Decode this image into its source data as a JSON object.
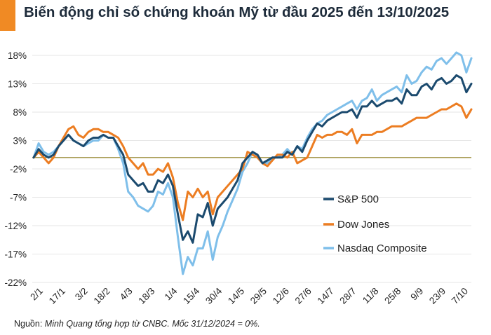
{
  "title": "Biến động chỉ số chứng khoán Mỹ từ đầu 2025 đến 13/10/2025",
  "source_prefix": "Nguồn: ",
  "source_text": "Minh Quang tổng hợp từ CNBC. Mốc 31/12/2024 = 0%.",
  "colors": {
    "sp500": "#1b4a6e",
    "dow": "#ec7d22",
    "nasdaq": "#7fbfea",
    "zero_line": "#8b7a1a",
    "grid": "#e6e6e6",
    "accent": "#f08a24"
  },
  "chart_data": {
    "type": "line",
    "title": "Biến động chỉ số chứng khoán Mỹ từ đầu 2025 đến 13/10/2025",
    "ylabel": "%",
    "ylim": [
      -22,
      18
    ],
    "yticks": [
      18,
      13,
      8,
      3,
      -2,
      -7,
      -12,
      -17,
      -22
    ],
    "ytick_labels": [
      "18%",
      "13%",
      "8%",
      "3%",
      "-2%",
      "-7%",
      "-12%",
      "-17%",
      "-22%"
    ],
    "xtick_labels": [
      "2/1",
      "17/1",
      "3/2",
      "18/2",
      "4/3",
      "18/3",
      "1/4",
      "15/4",
      "30/4",
      "14/5",
      "29/5",
      "12/6",
      "27/6",
      "14/7",
      "28/7",
      "11/8",
      "25/8",
      "9/9",
      "23/9",
      "7/10"
    ],
    "legend_position": "right",
    "series": [
      {
        "name": "S&P 500",
        "values": [
          0,
          1.5,
          0.5,
          0,
          0.5,
          2,
          3,
          4,
          3,
          2.5,
          2,
          3,
          3.5,
          3.5,
          4,
          3.5,
          3.5,
          2,
          0.5,
          -3,
          -4,
          -5,
          -4.5,
          -6,
          -6,
          -4,
          -4.5,
          -3,
          -5,
          -10,
          -14.5,
          -13,
          -15,
          -10,
          -10.5,
          -8,
          -12,
          -9,
          -8,
          -7,
          -5.5,
          -4,
          -1,
          0,
          1,
          0.5,
          -1,
          -0.5,
          0,
          0,
          0,
          1,
          0.5,
          2,
          1,
          3,
          4.5,
          6,
          5.5,
          6.5,
          7,
          7.5,
          8,
          8,
          8.5,
          7,
          9,
          9,
          10,
          9,
          9.5,
          10,
          10,
          10.5,
          9.5,
          12,
          11,
          11,
          12.5,
          13,
          12,
          13.5,
          14,
          13,
          13.5,
          14.5,
          14,
          11.5,
          13
        ]
      },
      {
        "name": "Dow Jones",
        "values": [
          0,
          1,
          0,
          -1,
          0,
          2,
          3.5,
          5,
          5.5,
          4,
          3.5,
          4.5,
          5,
          5,
          4.5,
          4.5,
          4,
          3.5,
          2,
          0,
          -1,
          -2,
          -1,
          -3,
          -3,
          -2,
          -2.5,
          -1,
          -3.5,
          -8,
          -11,
          -6,
          -7,
          -5.5,
          -7,
          -6,
          -10,
          -7,
          -6,
          -5,
          -4,
          -3,
          -2,
          1,
          0.5,
          0,
          -1,
          -1.5,
          -0.5,
          0.5,
          0.5,
          0,
          1,
          -1,
          -0.5,
          0,
          2,
          4,
          3.5,
          4,
          4,
          4.5,
          4.5,
          4,
          5,
          2.5,
          4,
          4,
          4,
          4.5,
          4.5,
          5,
          5.5,
          5.5,
          5.5,
          6,
          6.5,
          7,
          7,
          7,
          7.5,
          8,
          8.5,
          8.5,
          9,
          9.5,
          9,
          7,
          8.5
        ]
      },
      {
        "name": "Nasdaq Composite",
        "values": [
          0,
          2.5,
          1,
          0.5,
          1,
          2,
          3,
          4,
          3,
          2.5,
          2,
          2.5,
          3,
          3,
          4,
          3.5,
          3.5,
          1.5,
          -1,
          -6,
          -7,
          -8.5,
          -9,
          -9.5,
          -8.5,
          -6,
          -6.5,
          -4.5,
          -7,
          -14,
          -20.5,
          -17.5,
          -19,
          -16,
          -16,
          -13,
          -18,
          -14,
          -12,
          -9.5,
          -7.5,
          -5.5,
          -2.5,
          -1,
          1,
          0,
          -1,
          -1,
          0,
          0,
          0.5,
          1.5,
          0.5,
          2,
          1.5,
          3.5,
          5,
          6,
          6.5,
          7.5,
          8,
          8.5,
          9,
          9.5,
          10,
          8.5,
          10,
          10.5,
          12,
          10,
          11,
          11.5,
          12,
          12.5,
          11.5,
          14.5,
          13,
          13.5,
          15,
          16,
          15.5,
          17,
          17.5,
          16.5,
          17.5,
          18.5,
          18,
          15,
          17.5
        ]
      }
    ]
  }
}
